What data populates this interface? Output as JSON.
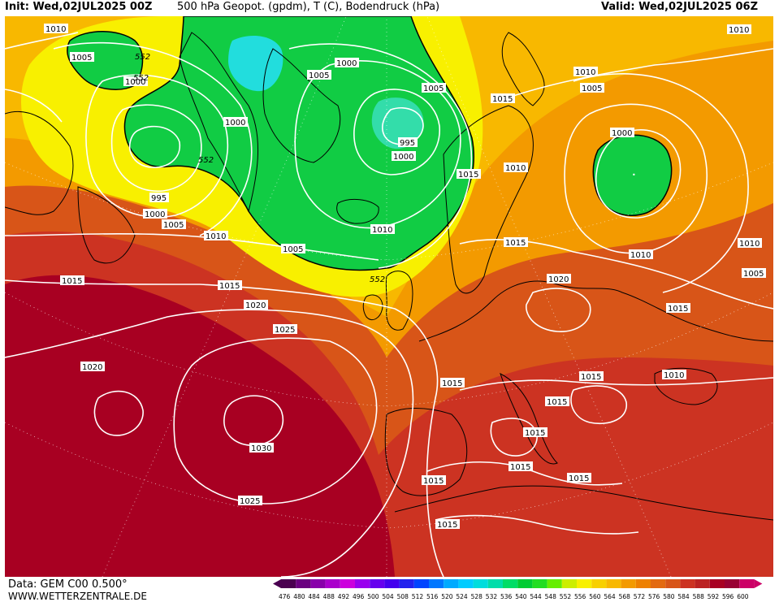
{
  "header": {
    "init": "Init: Wed,02JUL2025 00Z",
    "title": "500 hPa Geopot. (gpdm), T (C), Bodendruck (hPa)",
    "valid": "Valid: Wed,02JUL2025 06Z"
  },
  "footer": {
    "source": "Data: GEM C00 0.500°",
    "site": "WWW.WETTERZENTRALE.DE"
  },
  "colors": {
    "low_green": "#22dd22",
    "mid_green": "#11cc44",
    "cyan_core": "#22dddd",
    "yellow": "#f8f000",
    "orange": "#f39a00",
    "dark_orange": "#e36a10",
    "red": "#cc3322",
    "dark_red": "#a80022",
    "isobar": "#ffffff",
    "coast": "#000000"
  },
  "isobar_labels": [
    {
      "text": "1010"
    },
    {
      "text": "1005"
    },
    {
      "text": "1000"
    },
    {
      "text": "995"
    },
    {
      "text": "1000"
    },
    {
      "text": "1005"
    },
    {
      "text": "1010"
    },
    {
      "text": "1015"
    },
    {
      "text": "1015"
    },
    {
      "text": "1020"
    },
    {
      "text": "1025"
    },
    {
      "text": "1020"
    },
    {
      "text": "1030"
    },
    {
      "text": "1025"
    },
    {
      "text": "1000"
    },
    {
      "text": "1000"
    },
    {
      "text": "1005"
    },
    {
      "text": "1000"
    },
    {
      "text": "995"
    },
    {
      "text": "1000"
    },
    {
      "text": "1005"
    },
    {
      "text": "1010"
    },
    {
      "text": "1005"
    },
    {
      "text": "1015"
    },
    {
      "text": "1015"
    },
    {
      "text": "1010"
    },
    {
      "text": "1015"
    },
    {
      "text": "1020"
    },
    {
      "text": "1010"
    },
    {
      "text": "1005"
    },
    {
      "text": "1000"
    },
    {
      "text": "1010"
    },
    {
      "text": "1010"
    },
    {
      "text": "1010"
    },
    {
      "text": "1005"
    },
    {
      "text": "1015"
    },
    {
      "text": "1015"
    },
    {
      "text": "1010"
    },
    {
      "text": "1015"
    },
    {
      "text": "1015"
    },
    {
      "text": "1015"
    },
    {
      "text": "1015"
    },
    {
      "text": "1015"
    },
    {
      "text": "1015"
    },
    {
      "text": "1015"
    }
  ],
  "geopot_labels": [
    {
      "text": "552"
    },
    {
      "text": "552"
    },
    {
      "text": "552"
    },
    {
      "text": "552"
    }
  ],
  "scale": {
    "values": [
      "476",
      "480",
      "484",
      "488",
      "492",
      "496",
      "500",
      "504",
      "508",
      "512",
      "516",
      "520",
      "524",
      "528",
      "532",
      "536",
      "540",
      "544",
      "548",
      "552",
      "556",
      "560",
      "564",
      "568",
      "572",
      "576",
      "580",
      "584",
      "588",
      "592",
      "596",
      "600"
    ],
    "colors": [
      "#4a0050",
      "#6a0080",
      "#8800aa",
      "#aa00cc",
      "#cc00dd",
      "#9900ee",
      "#6600ee",
      "#4400ee",
      "#2222ee",
      "#0044ff",
      "#0077ff",
      "#00aaff",
      "#00ccff",
      "#00dddd",
      "#00ddaa",
      "#00dd66",
      "#00cc33",
      "#22dd22",
      "#66ee00",
      "#ccee00",
      "#f8f000",
      "#f8d000",
      "#f8b800",
      "#f39a00",
      "#ee8000",
      "#e36a10",
      "#d85518",
      "#cc3322",
      "#bb2222",
      "#a80022",
      "#990033",
      "#cc0066"
    ]
  }
}
